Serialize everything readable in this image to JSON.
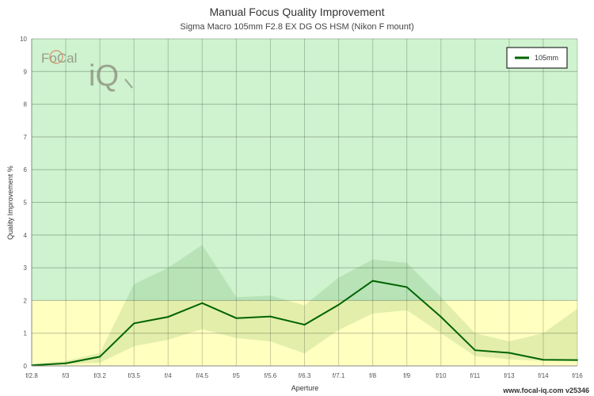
{
  "header": {
    "title": "Manual Focus Quality Improvement",
    "subtitle": "Sigma Macro 105mm F2.8 EX DG OS HSM (Nikon F mount)"
  },
  "footer": {
    "url": "www.focal-iq.com  v25346"
  },
  "logo": {
    "text_top": "FoCal",
    "text_bottom": "iQ"
  },
  "chart_data": {
    "type": "line",
    "xlabel": "Aperture",
    "ylabel": "Quality Improvement %",
    "categories": [
      "f/2.8",
      "f/3",
      "f/3.2",
      "f/3.5",
      "f/4",
      "f/4.5",
      "f/5",
      "f/5.6",
      "f/6.3",
      "f/7.1",
      "f/8",
      "f/9",
      "f/10",
      "f/11",
      "f/13",
      "f/14",
      "f/16"
    ],
    "ylim": [
      0,
      10
    ],
    "yticks": [
      0,
      1,
      2,
      3,
      4,
      5,
      6,
      7,
      8,
      9,
      10
    ],
    "grid": true,
    "legend_position": "top-right",
    "zones": [
      {
        "from": 0,
        "to": 2,
        "color": "#ffffc0"
      },
      {
        "from": 2,
        "to": 10,
        "color": "#cef3ce"
      }
    ],
    "series": [
      {
        "name": "105mm",
        "color": "#006400",
        "values": [
          0.02,
          0.08,
          0.28,
          1.3,
          1.5,
          1.92,
          1.46,
          1.51,
          1.26,
          1.87,
          2.6,
          2.41,
          1.5,
          0.48,
          0.4,
          0.19,
          0.18
        ],
        "band_upper": [
          0.05,
          0.15,
          0.4,
          2.5,
          3.0,
          3.7,
          2.1,
          2.15,
          1.85,
          2.7,
          3.25,
          3.15,
          2.1,
          1.0,
          0.75,
          1.0,
          1.75
        ],
        "band_lower": [
          0.0,
          0.05,
          0.1,
          0.6,
          0.8,
          1.12,
          0.85,
          0.75,
          0.38,
          1.1,
          1.6,
          1.7,
          1.0,
          0.3,
          0.2,
          0.15,
          0.15
        ]
      }
    ]
  }
}
